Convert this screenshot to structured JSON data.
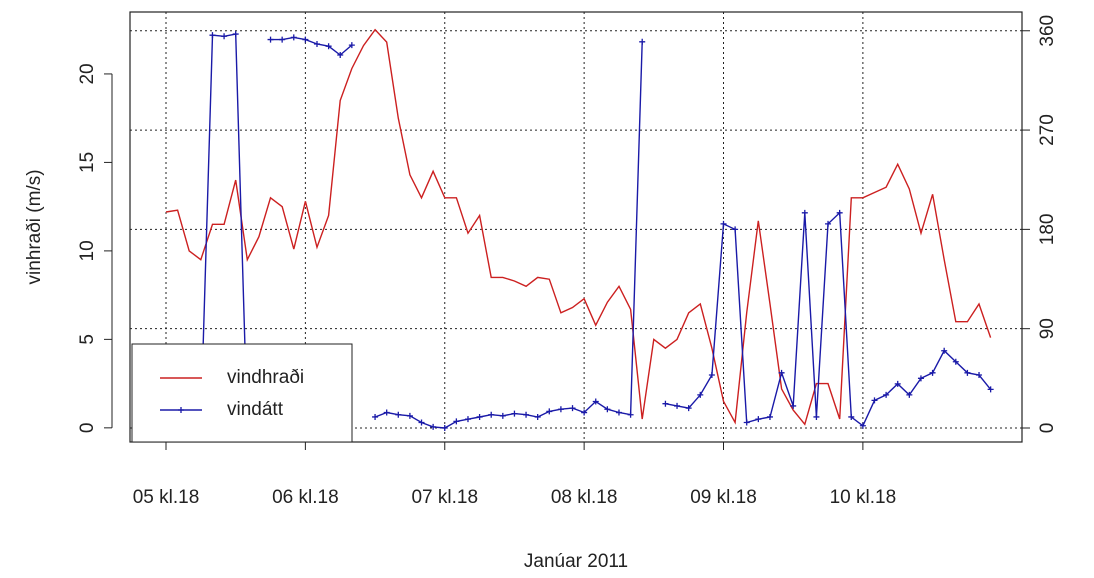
{
  "chart_data": {
    "type": "line",
    "xlabel": "Janúar 2011",
    "ylabel": "vinhraði (m/s)",
    "x": [
      0,
      2,
      4,
      6,
      8,
      10,
      12,
      14,
      16,
      18,
      20,
      22,
      24,
      26,
      28,
      30,
      32,
      34,
      36,
      38,
      40,
      42,
      44,
      46,
      48,
      50,
      52,
      54,
      56,
      58,
      60,
      62,
      64,
      66,
      68,
      70,
      72,
      74,
      76,
      78,
      80,
      82,
      84,
      86,
      88,
      90,
      92,
      94,
      96,
      98,
      100,
      102,
      104,
      106,
      108,
      110,
      112,
      114,
      116,
      118,
      120,
      122,
      124,
      126,
      128,
      130,
      132,
      134,
      136,
      138,
      140,
      142
    ],
    "series": [
      {
        "name": "vindhraði",
        "color": "#cc2020",
        "axis": "y",
        "values": [
          12.2,
          12.3,
          10,
          9.5,
          11.5,
          11.5,
          14,
          9.5,
          10.8,
          13,
          12.5,
          10.1,
          12.8,
          10.2,
          12,
          18.5,
          20.3,
          21.6,
          22.5,
          21.8,
          17.5,
          14.3,
          13,
          14.5,
          13,
          13,
          11,
          12,
          8.5,
          8.5,
          8.3,
          8,
          8.5,
          8.4,
          6.5,
          6.8,
          7.3,
          5.8,
          7.1,
          8,
          6.7,
          0.5,
          5,
          4.5,
          5,
          6.5,
          7,
          4.5,
          1.5,
          0.3,
          6.5,
          11.7,
          7,
          2.2,
          1,
          0.2,
          2.5,
          2.5,
          0.5,
          13,
          13,
          13.3,
          13.6,
          14.9,
          13.5,
          11,
          13.2,
          9.5,
          6,
          6,
          7,
          5.1
        ]
      },
      {
        "name": "vindátt",
        "color": "#1a1aa8",
        "axis": "y2",
        "values": [
          12,
          14,
          5,
          4,
          356,
          355,
          357,
          2,
          null,
          352,
          352,
          354,
          352,
          348,
          346,
          338,
          347,
          null,
          10,
          14,
          12,
          11,
          5,
          1,
          0,
          6,
          8,
          10,
          12,
          11,
          13,
          12,
          10,
          15,
          17,
          18,
          14,
          24,
          17,
          14,
          12,
          350,
          null,
          22,
          20,
          18,
          30,
          48,
          185,
          180,
          5,
          8,
          10,
          50,
          20,
          195,
          10,
          185,
          195,
          10,
          2,
          25,
          30,
          40,
          30,
          45,
          50,
          70,
          60,
          50,
          48,
          35
        ]
      }
    ],
    "xlim": [
      -6.2,
      147.4
    ],
    "xticks": [
      {
        "value": 0,
        "label": "05 kl.18"
      },
      {
        "value": 24,
        "label": "06 kl.18"
      },
      {
        "value": 48,
        "label": "07 kl.18"
      },
      {
        "value": 72,
        "label": "08 kl.18"
      },
      {
        "value": 96,
        "label": "09 kl.18"
      },
      {
        "value": 120,
        "label": "10 kl.18"
      }
    ],
    "ylim": [
      -0.8,
      23.5
    ],
    "yticks": [
      0,
      5,
      10,
      15,
      20
    ],
    "y2lim": [
      -12.7,
      377
    ],
    "y2ticks": [
      0,
      90,
      180,
      270,
      360
    ],
    "grid": true,
    "legend": "bottomleft"
  }
}
